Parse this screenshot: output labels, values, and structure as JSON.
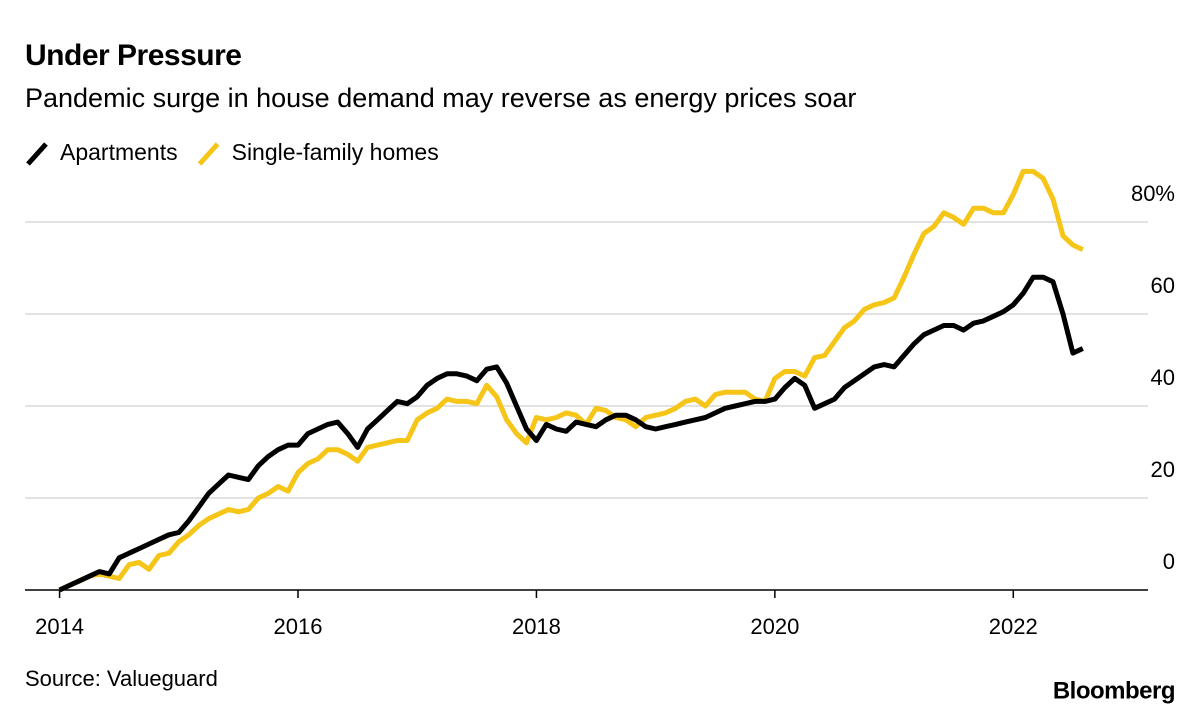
{
  "chart_data": {
    "type": "line",
    "title": "Under Pressure",
    "subtitle": "Pandemic surge in house demand may reverse as energy prices soar",
    "source": "Source: Valueguard",
    "brand": "Bloomberg",
    "x": [
      2014,
      2014.083,
      2014.167,
      2014.25,
      2014.333,
      2014.417,
      2014.5,
      2014.583,
      2014.667,
      2014.75,
      2014.833,
      2014.917,
      2015,
      2015.083,
      2015.167,
      2015.25,
      2015.333,
      2015.417,
      2015.5,
      2015.583,
      2015.667,
      2015.75,
      2015.833,
      2015.917,
      2016,
      2016.083,
      2016.167,
      2016.25,
      2016.333,
      2016.417,
      2016.5,
      2016.583,
      2016.667,
      2016.75,
      2016.833,
      2016.917,
      2017,
      2017.083,
      2017.167,
      2017.25,
      2017.333,
      2017.417,
      2017.5,
      2017.583,
      2017.667,
      2017.75,
      2017.833,
      2017.917,
      2018,
      2018.083,
      2018.167,
      2018.25,
      2018.333,
      2018.417,
      2018.5,
      2018.583,
      2018.667,
      2018.75,
      2018.833,
      2018.917,
      2019,
      2019.083,
      2019.167,
      2019.25,
      2019.333,
      2019.417,
      2019.5,
      2019.583,
      2019.667,
      2019.75,
      2019.833,
      2019.917,
      2020,
      2020.083,
      2020.167,
      2020.25,
      2020.333,
      2020.417,
      2020.5,
      2020.583,
      2020.667,
      2020.75,
      2020.833,
      2020.917,
      2021,
      2021.083,
      2021.167,
      2021.25,
      2021.333,
      2021.417,
      2021.5,
      2021.583,
      2021.667,
      2021.75,
      2021.833,
      2021.917,
      2022,
      2022.083,
      2022.167,
      2022.25,
      2022.333,
      2022.417,
      2022.5,
      2022.583
    ],
    "series": [
      {
        "name": "Apartments",
        "color": "#000000",
        "values": [
          0,
          1,
          2,
          3,
          4,
          3.5,
          7,
          8,
          9,
          10,
          11,
          12,
          12.5,
          15,
          18,
          21,
          23,
          25,
          24.5,
          24,
          27,
          29,
          30.5,
          31.5,
          31.5,
          34,
          35,
          36,
          36.5,
          34,
          31,
          35,
          37,
          39,
          41,
          40.5,
          42,
          44.5,
          46,
          47,
          47,
          46.5,
          45.5,
          48,
          48.5,
          45,
          40,
          35,
          32.5,
          36,
          35,
          34.5,
          36.5,
          36,
          35.5,
          37,
          38,
          38,
          37,
          35.5,
          35,
          35.5,
          36,
          36.5,
          37,
          37.5,
          38.5,
          39.5,
          40,
          40.5,
          41,
          41,
          41.5,
          44,
          46,
          44.5,
          39.5,
          40.5,
          41.5,
          44,
          45.5,
          47,
          48.5,
          49,
          48.5,
          51,
          53.5,
          55.5,
          56.5,
          57.5,
          57.5,
          56.5,
          58,
          58.5,
          59.5,
          60.5,
          62,
          64.5,
          68,
          68,
          67,
          60,
          51.5,
          52.5
        ]
      },
      {
        "name": "Single-family homes",
        "color": "#f5c518",
        "values": [
          0,
          1,
          2,
          3,
          3.5,
          3,
          2.5,
          5.5,
          6,
          4.5,
          7.5,
          8,
          10.5,
          12,
          14,
          15.5,
          16.5,
          17.5,
          17,
          17.5,
          20,
          21,
          22.5,
          21.5,
          25.5,
          27.5,
          28.5,
          30.5,
          30.5,
          29.5,
          28,
          31,
          31.5,
          32,
          32.5,
          32.5,
          37,
          38.5,
          39.5,
          41.5,
          41,
          41,
          40.5,
          44.5,
          42,
          37,
          34,
          32,
          37.5,
          37,
          37.5,
          38.5,
          38,
          36,
          39.5,
          39,
          37.5,
          37,
          35.5,
          37.5,
          38,
          38.5,
          39.5,
          41,
          41.5,
          40,
          42.5,
          43,
          43,
          43,
          41.5,
          41,
          46,
          47.5,
          47.5,
          46.5,
          50.5,
          51,
          54,
          57,
          58.5,
          61,
          62,
          62.5,
          63.5,
          68,
          73,
          77.5,
          79,
          82,
          81,
          79.5,
          83,
          83,
          82,
          82,
          86,
          91,
          91,
          89.5,
          85,
          77,
          75,
          74
        ]
      }
    ],
    "xlim": [
      2013.71,
      2023.13
    ],
    "xticks": [
      2014,
      2016,
      2018,
      2020,
      2022
    ],
    "ylim": [
      0,
      90
    ],
    "yticks": [
      0,
      20,
      40,
      60,
      {
        "value": 80,
        "label": "80%"
      }
    ],
    "grid": true
  }
}
